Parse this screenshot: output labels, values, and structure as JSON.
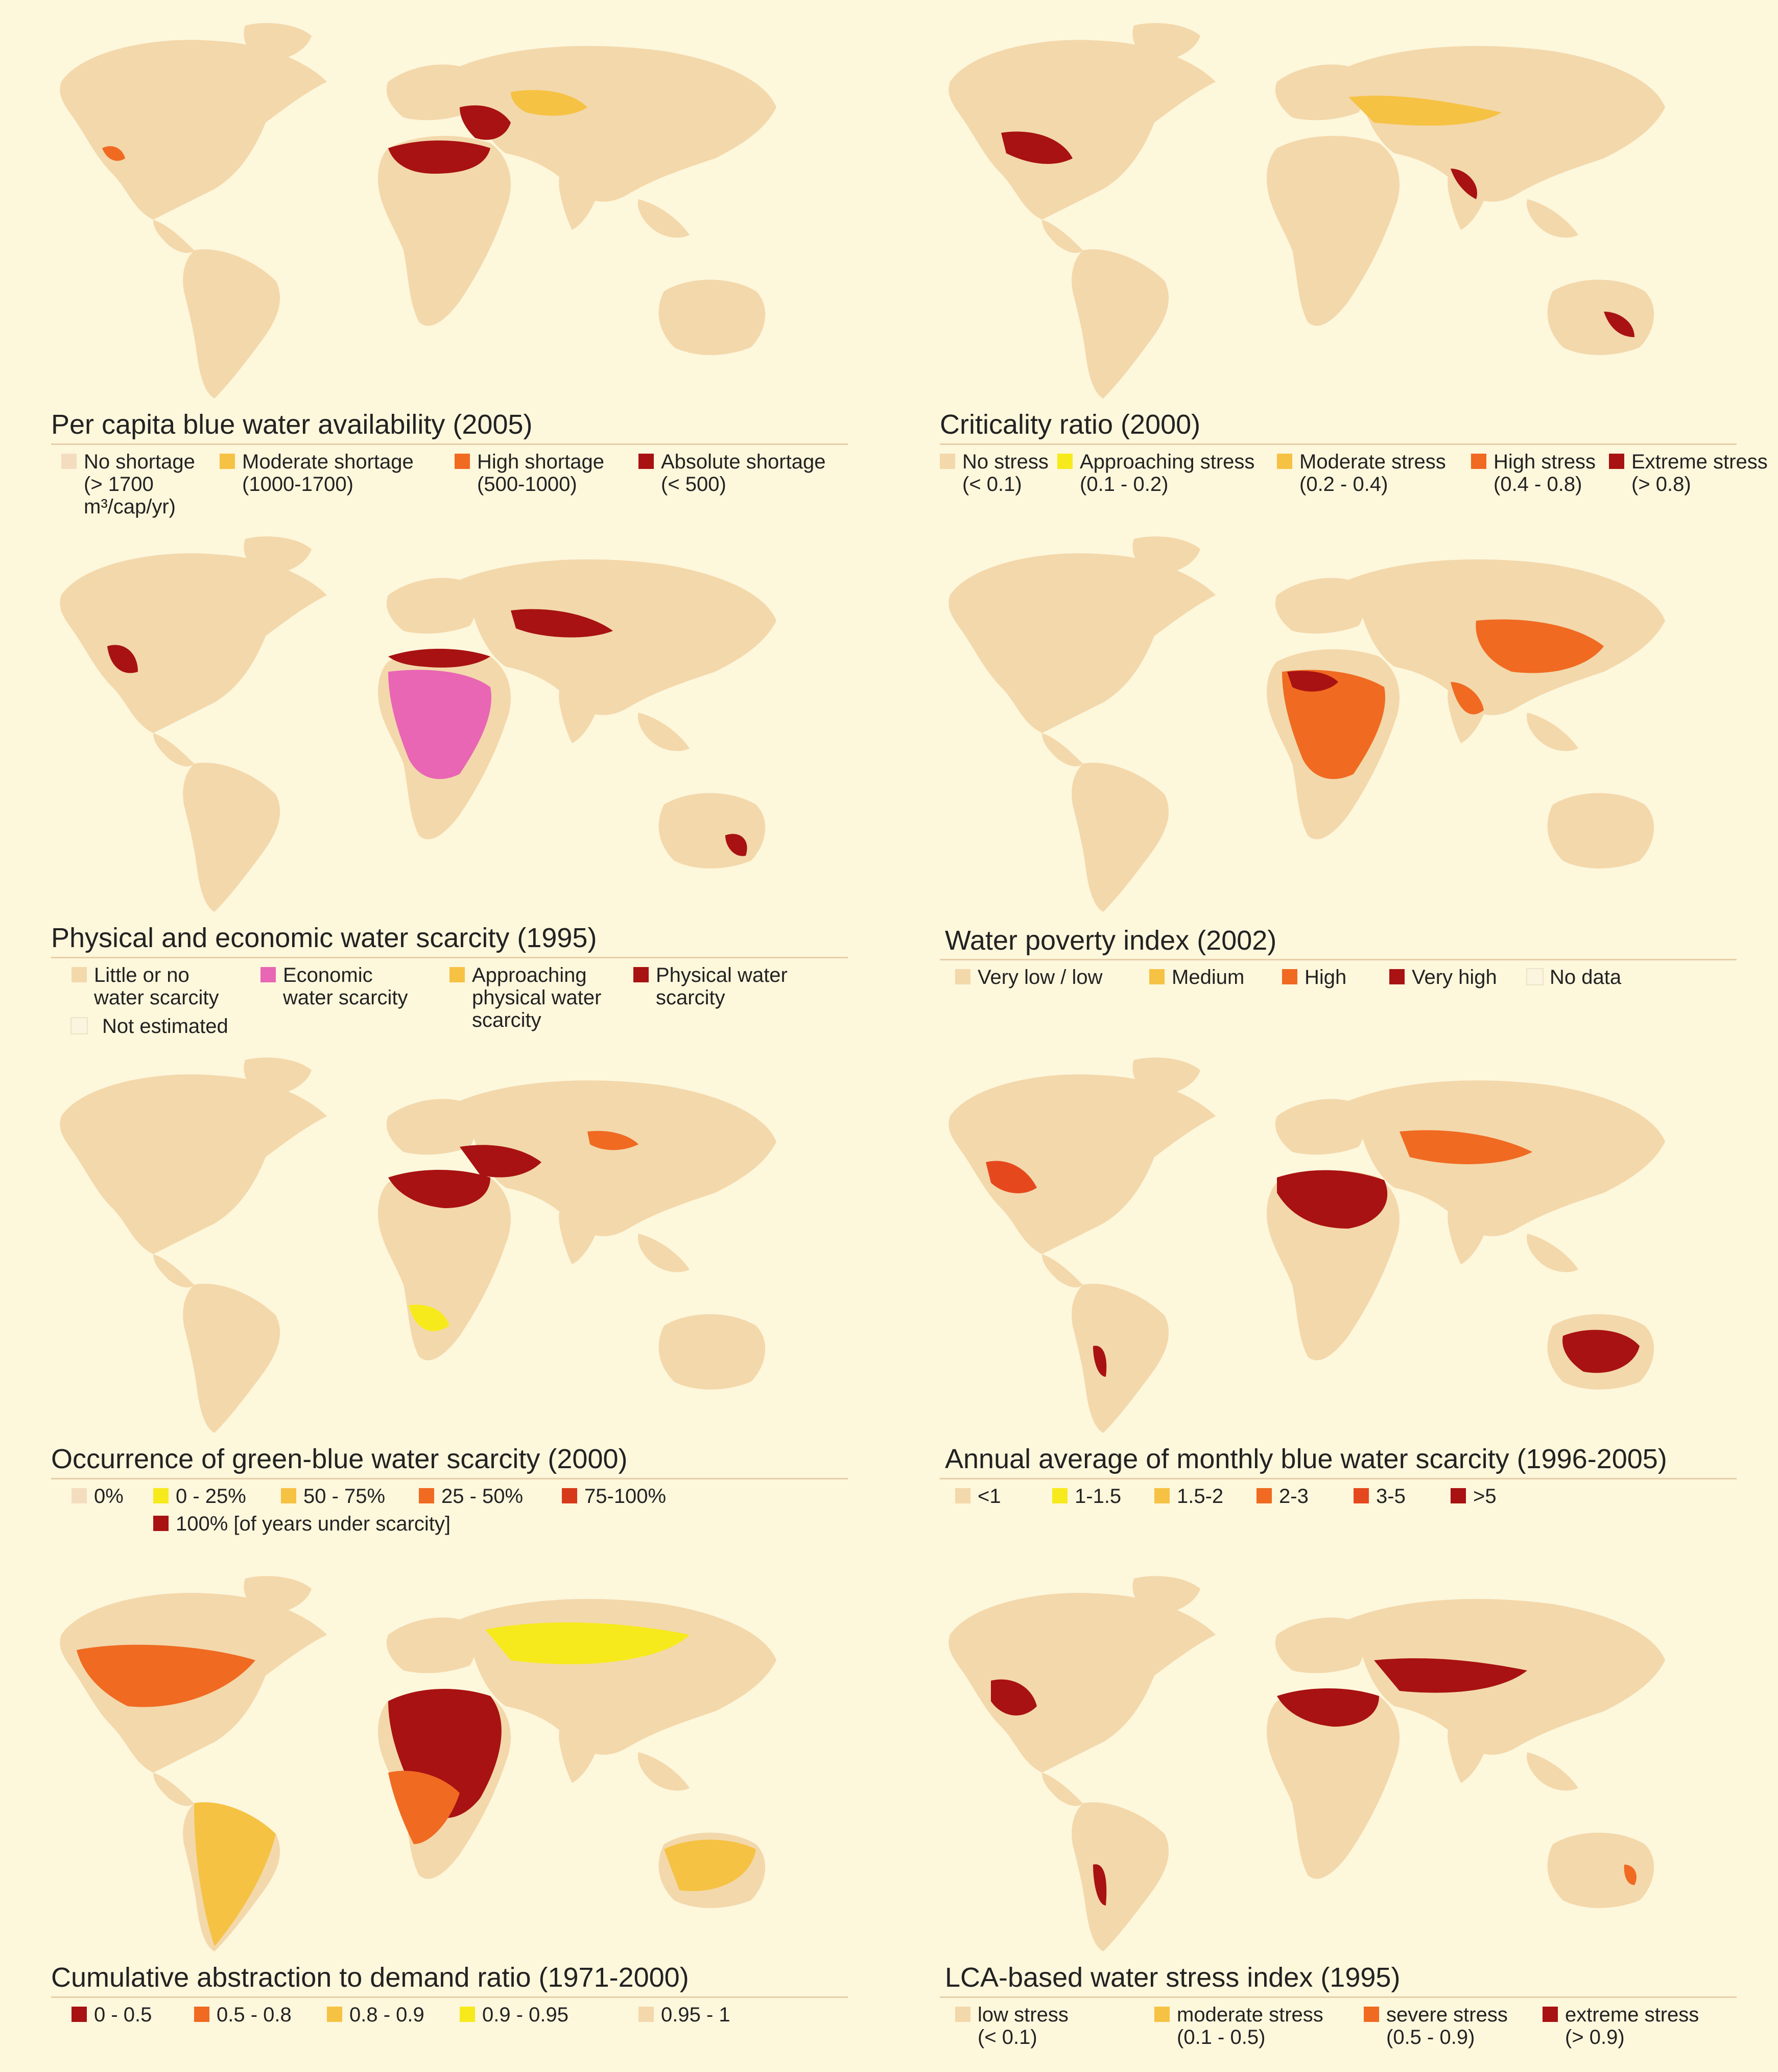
{
  "colors": {
    "land": "#f3d8ab",
    "background": "#fdf7dc",
    "yellow": "#f7ea1c",
    "light_orange": "#f6c244",
    "orange": "#f06a22",
    "red_orange": "#e6481e",
    "dark_red": "#a81212",
    "pink": "#e866b4",
    "nodata": "#fbf4df"
  },
  "panels": [
    {
      "title": "Per capita blue water availability (2005)",
      "legend": [
        {
          "text": "No shortage\n(> 1700\nm³/cap/yr)",
          "color": "#f4ddbf"
        },
        {
          "text": "Moderate shortage\n(1000-1700)",
          "color": "#f6c244"
        },
        {
          "text": "High shortage\n(500-1000)",
          "color": "#f06a22"
        },
        {
          "text": "Absolute shortage\n(< 500)",
          "color": "#a81212"
        }
      ]
    },
    {
      "title": "Criticality ratio (2000)",
      "legend": [
        {
          "text": "No stress\n(< 0.1)",
          "color": "#f3d8ab"
        },
        {
          "text": "Approaching stress\n(0.1 - 0.2)",
          "color": "#f7ea1c"
        },
        {
          "text": "Moderate stress\n(0.2 - 0.4)",
          "color": "#f6c244"
        },
        {
          "text": "High stress\n(0.4 - 0.8)",
          "color": "#f06a22"
        },
        {
          "text": "Extreme stress\n(> 0.8)",
          "color": "#a81212"
        }
      ]
    },
    {
      "title": "Physical and economic water scarcity (1995)",
      "legend": [
        {
          "text": "Little or no\nwater scarcity",
          "color": "#f3d8ab"
        },
        {
          "text": "Economic\nwater scarcity",
          "color": "#e866b4"
        },
        {
          "text": "Approaching\nphysical water\nscarcity",
          "color": "#f6c244"
        },
        {
          "text": "Physical water\nscarcity",
          "color": "#a81212"
        },
        {
          "text": "Not estimated",
          "color": "#fbf4df"
        }
      ]
    },
    {
      "title": "Water poverty index (2002)",
      "legend": [
        {
          "text": "Very low / low",
          "color": "#f3d8ab"
        },
        {
          "text": "Medium",
          "color": "#f6c244"
        },
        {
          "text": "High",
          "color": "#f06a22"
        },
        {
          "text": "Very high",
          "color": "#a81212"
        },
        {
          "text": "No data",
          "color": "#fbf4df"
        }
      ]
    },
    {
      "title": "Occurrence of green-blue water scarcity (2000)",
      "legend": [
        {
          "text": "0%",
          "color": "#f4ddbf"
        },
        {
          "text": "0 - 25%",
          "color": "#f7ea1c"
        },
        {
          "text": "50 - 75%",
          "color": "#f6c244"
        },
        {
          "text": "25 - 50%",
          "color": "#f06a22"
        },
        {
          "text": "75-100%",
          "color": "#d63a1a"
        },
        {
          "text": "100% [of years under scarcity]",
          "color": "#a81212"
        }
      ]
    },
    {
      "title": "Annual average of monthly blue water scarcity (1996-2005)",
      "legend": [
        {
          "text": "<1",
          "color": "#f3d8ab"
        },
        {
          "text": "1-1.5",
          "color": "#f7ea1c"
        },
        {
          "text": "1.5-2",
          "color": "#f6c244"
        },
        {
          "text": "2-3",
          "color": "#f06a22"
        },
        {
          "text": "3-5",
          "color": "#e6481e"
        },
        {
          "text": ">5",
          "color": "#a81212"
        }
      ]
    },
    {
      "title": "Cumulative abstraction to demand ratio (1971-2000)",
      "legend": [
        {
          "text": "0 - 0.5",
          "color": "#a81212"
        },
        {
          "text": "0.5 - 0.8",
          "color": "#f06a22"
        },
        {
          "text": "0.8 - 0.9",
          "color": "#f6c244"
        },
        {
          "text": "0.9 - 0.95",
          "color": "#f7ea1c"
        },
        {
          "text": "0.95 - 1",
          "color": "#f3d8ab"
        }
      ]
    },
    {
      "title": "LCA-based water stress index (1995)",
      "legend": [
        {
          "text": "low stress\n(< 0.1)",
          "color": "#f3d8ab"
        },
        {
          "text": "moderate stress\n(0.1 - 0.5)",
          "color": "#f6c244"
        },
        {
          "text": "severe stress\n(0.5 - 0.9)",
          "color": "#f06a22"
        },
        {
          "text": "extreme stress\n(> 0.9)",
          "color": "#a81212"
        }
      ]
    }
  ]
}
